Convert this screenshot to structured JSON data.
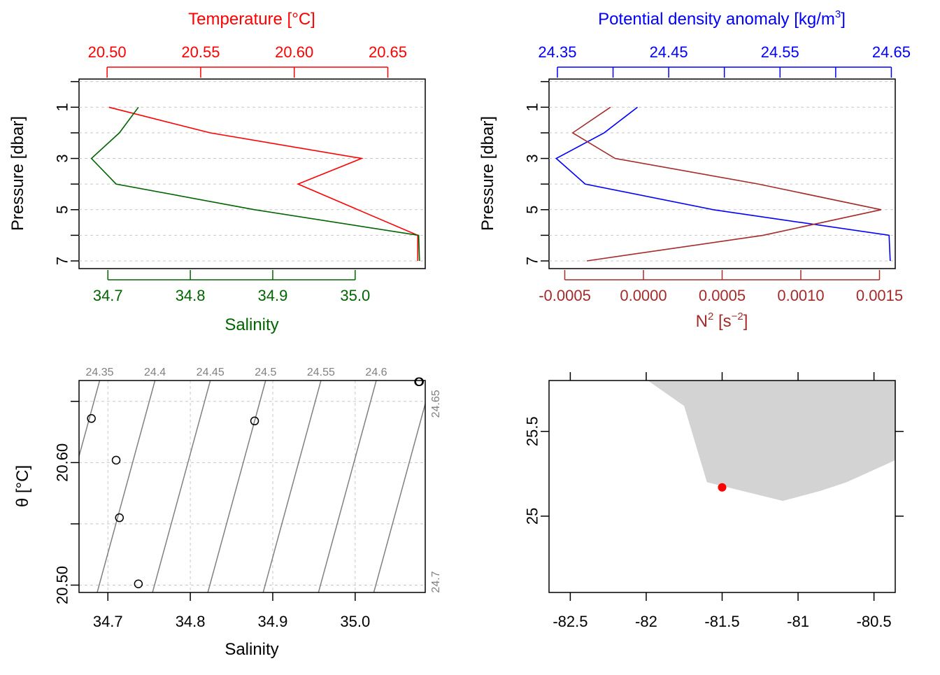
{
  "colors": {
    "temperature": "#ff0000",
    "salinity": "#006400",
    "density": "#0000ff",
    "n2": "#a52a2a",
    "points": "#000000",
    "isopycnal": "#808080",
    "land": "#d3d3d3",
    "station": "#ff0000",
    "grid": "#c8c8c8"
  },
  "chart_data": [
    {
      "id": "profile_TS",
      "type": "line",
      "ylabel": "Pressure [dbar]",
      "ylim": [
        7.3,
        -0.1
      ],
      "yticks": [
        "1",
        "3",
        "5",
        "7"
      ],
      "top_axis": {
        "label": "Temperature [°C]",
        "ticks": [
          "20.50",
          "20.55",
          "20.60",
          "20.65"
        ],
        "range": [
          20.485,
          20.67
        ]
      },
      "bottom_axis": {
        "label": "Salinity",
        "ticks": [
          "34.7",
          "34.8",
          "34.9",
          "35.0"
        ],
        "range": [
          34.665,
          35.085
        ]
      },
      "series": [
        {
          "name": "Temperature [°C]",
          "axis": "top",
          "y": [
            1,
            2,
            3,
            4,
            5,
            6,
            7
          ],
          "values": [
            20.501,
            20.555,
            20.636,
            20.602,
            20.634,
            20.666,
            20.666
          ]
        },
        {
          "name": "Salinity",
          "axis": "bottom",
          "y": [
            1,
            2,
            3,
            4,
            5,
            6,
            7
          ],
          "values": [
            34.737,
            34.714,
            34.68,
            34.71,
            34.878,
            35.077,
            35.078
          ]
        }
      ],
      "grid": true
    },
    {
      "id": "profile_density_N2",
      "type": "line",
      "ylabel": "Pressure [dbar]",
      "ylim": [
        7.3,
        -0.1
      ],
      "yticks": [
        "1",
        "3",
        "5",
        "7"
      ],
      "top_axis": {
        "label": "Potential density anomaly [kg/m",
        "label_sup": "3",
        "label_end": "]",
        "ticks": [
          "24.35",
          "24.45",
          "24.55",
          "24.65"
        ],
        "range": [
          24.3425,
          24.6535
        ]
      },
      "bottom_axis": {
        "label": "N",
        "label_sup": "2",
        "label_mid": " [s",
        "label_sup2": "−2",
        "label_end": "]",
        "ticks": [
          "-0.0005",
          "0.0000",
          "0.0005",
          "0.0010",
          "0.0015"
        ],
        "range": [
          -0.0006,
          0.0016
        ]
      },
      "series": [
        {
          "name": "Potential density anomaly",
          "axis": "top",
          "y": [
            1,
            2,
            3,
            4,
            5,
            6,
            7
          ],
          "values": [
            24.422,
            24.392,
            24.349,
            24.375,
            24.49,
            24.648,
            24.649
          ]
        },
        {
          "name": "N2",
          "axis": "bottom",
          "y": [
            1,
            2,
            3,
            4,
            5,
            6,
            7
          ],
          "values": [
            -0.00021,
            -0.00045,
            -0.00018,
            0.00073,
            0.00151,
            0.00076,
            -0.00036
          ]
        }
      ],
      "grid": true
    },
    {
      "id": "ts_diagram",
      "type": "scatter",
      "xlabel": "Salinity",
      "ylabel": "θ [°C]",
      "xticks": [
        "34.7",
        "34.8",
        "34.9",
        "35.0"
      ],
      "yticks": [
        "20.50",
        "20.60"
      ],
      "xlim": [
        34.665,
        35.085
      ],
      "ylim": [
        20.494,
        20.667
      ],
      "points": {
        "x": [
          34.737,
          34.714,
          34.68,
          34.71,
          34.878,
          35.077,
          35.078
        ],
        "y": [
          20.501,
          20.555,
          20.636,
          20.602,
          20.634,
          20.666,
          20.666
        ]
      },
      "isopycnal_labels": [
        "24.35",
        "24.4",
        "24.45",
        "24.5",
        "24.55",
        "24.6",
        "24.65",
        "24.7"
      ],
      "grid": true
    },
    {
      "id": "station_map",
      "type": "scatter",
      "xticks": [
        "-82.5",
        "-82",
        "-81.5",
        "-81",
        "-80.5"
      ],
      "yticks": [
        "25",
        "25.5"
      ],
      "xlim": [
        -82.64,
        -80.36
      ],
      "ylim": [
        24.55,
        25.8
      ],
      "station": {
        "lon": -81.5,
        "lat": 25.17
      },
      "land_polygon": [
        [
          -81.99,
          25.8
        ],
        [
          -81.75,
          25.65
        ],
        [
          -81.6,
          25.2
        ],
        [
          -81.1,
          25.09
        ],
        [
          -80.85,
          25.15
        ],
        [
          -80.68,
          25.2
        ],
        [
          -80.36,
          25.33
        ],
        [
          -80.36,
          25.8
        ]
      ]
    }
  ]
}
